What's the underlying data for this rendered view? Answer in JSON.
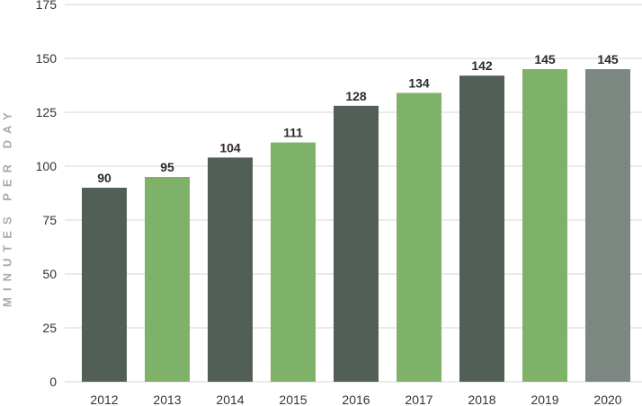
{
  "chart_data": {
    "type": "bar",
    "title": "",
    "xlabel": "",
    "ylabel": "MINUTES PER DAY",
    "ylim": [
      0,
      175
    ],
    "yticks": [
      0,
      25,
      50,
      75,
      100,
      125,
      150,
      175
    ],
    "categories": [
      "2012",
      "2013",
      "2014",
      "2015",
      "2016",
      "2017",
      "2018",
      "2019",
      "2020"
    ],
    "values": [
      90,
      95,
      104,
      111,
      128,
      134,
      142,
      145,
      145
    ],
    "data_labels": [
      "90",
      "95",
      "104",
      "111",
      "128",
      "134",
      "142",
      "145",
      "145"
    ],
    "bar_colors": [
      "#515f57",
      "#7eb268",
      "#515f57",
      "#7eb268",
      "#515f57",
      "#7eb268",
      "#515f57",
      "#7eb268",
      "#7d8782"
    ],
    "grid": true,
    "legend": "none"
  }
}
